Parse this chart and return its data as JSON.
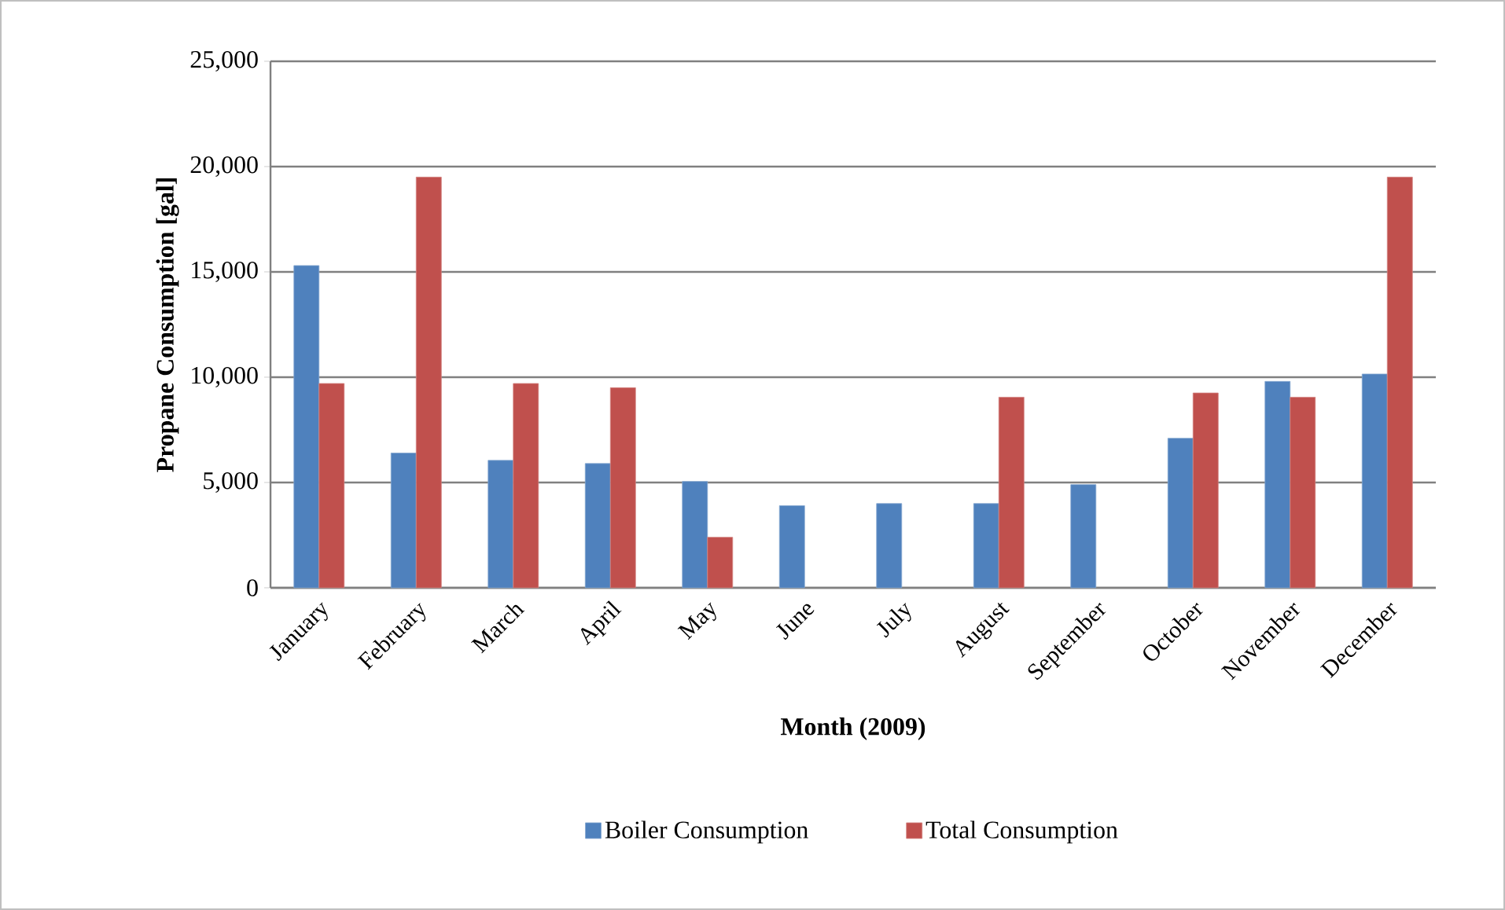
{
  "chart_data": {
    "type": "bar",
    "xlabel": "Month (2009)",
    "ylabel": "Propane Consumption [gal]",
    "categories": [
      "January",
      "February",
      "March",
      "April",
      "May",
      "June",
      "July",
      "August",
      "September",
      "October",
      "November",
      "December"
    ],
    "series": [
      {
        "name": "Boiler Consumption",
        "color": "#4f81bd",
        "values": [
          15300,
          6400,
          6050,
          5900,
          5050,
          3900,
          4000,
          4000,
          4900,
          7100,
          9800,
          10150
        ]
      },
      {
        "name": "Total Consumption",
        "color": "#c0504d",
        "values": [
          9700,
          19500,
          9700,
          9500,
          2400,
          null,
          null,
          9050,
          null,
          9250,
          9050,
          19500
        ]
      }
    ],
    "ylim": [
      0,
      25000
    ],
    "yticks": [
      {
        "value": 0,
        "label": "0"
      },
      {
        "value": 5000,
        "label": "5,000"
      },
      {
        "value": 10000,
        "label": "10,000"
      },
      {
        "value": 15000,
        "label": "15,000"
      },
      {
        "value": 20000,
        "label": "20,000"
      },
      {
        "value": 25000,
        "label": "25,000"
      }
    ],
    "grid": "y",
    "legend": "bottom"
  }
}
